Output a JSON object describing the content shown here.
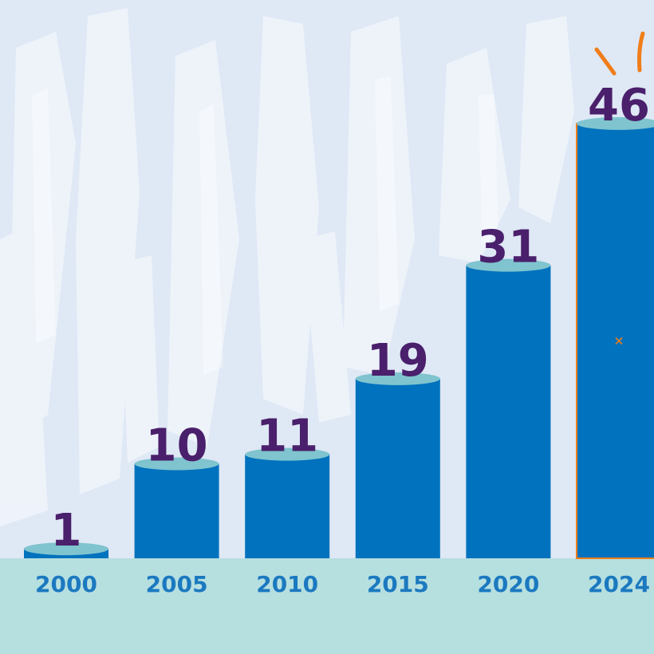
{
  "chart_data": {
    "type": "bar",
    "categories": [
      "2000",
      "2005",
      "2010",
      "2015",
      "2020",
      "2024"
    ],
    "values": [
      1,
      10,
      11,
      19,
      31,
      46
    ],
    "value_labels": [
      "1",
      "10",
      "11",
      "19",
      "31",
      "46"
    ],
    "highlight_index": 5,
    "grid": false,
    "legend": "none"
  },
  "colors": {
    "background": "#dfe8f5",
    "background_stroke": "#f3f7fc",
    "floor": "#b6dfe0",
    "bar": "#0172bd",
    "bar_top": "#7fc4cf",
    "value_text": "#4a1f6b",
    "category_text": "#1b79bf",
    "accent": "#f07d1a"
  }
}
